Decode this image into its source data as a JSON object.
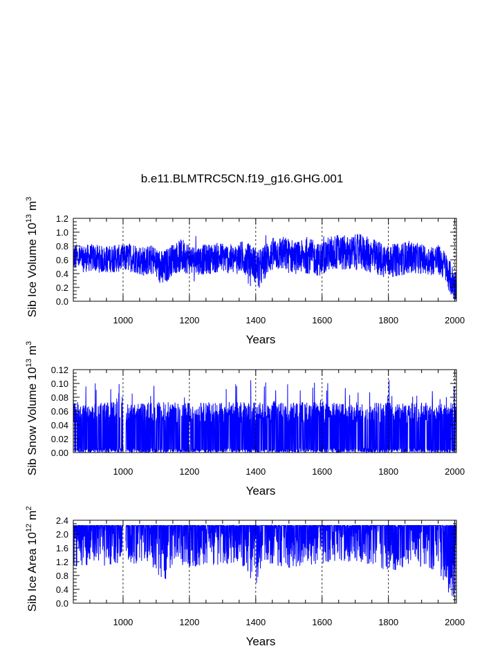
{
  "title": "b.e11.BLMTRC5CN.f19_g16.GHG.001",
  "colors": {
    "series": "#0000ff",
    "axis": "#000000",
    "grid": "#000000"
  },
  "chart_data": [
    {
      "type": "line",
      "panel": "top",
      "ylabel_main": "Sib Ice Volume 10",
      "ylabel_exp": "13",
      "ylabel_unit": "m",
      "ylabel_unit_exp": "3",
      "xlabel": "Years",
      "xlim": [
        850,
        2005
      ],
      "ylim": [
        0.0,
        1.2
      ],
      "xticks": [
        1000,
        1200,
        1400,
        1600,
        1800,
        2000
      ],
      "xtick_labels": [
        "1000",
        "1200",
        "1400",
        "1600",
        "1800",
        "2000"
      ],
      "yticks": [
        0.0,
        0.2,
        0.4,
        0.6,
        0.8,
        1.0,
        1.2
      ],
      "ytick_labels": [
        "0.0",
        "0.2",
        "0.4",
        "0.6",
        "0.8",
        "1.0",
        "1.2"
      ],
      "grid": "dashed vertical at major x ticks",
      "series": [
        {
          "x": [
            850,
            880,
            910,
            940,
            970,
            1000,
            1030,
            1060,
            1090,
            1120,
            1150,
            1180,
            1210,
            1240,
            1270,
            1300,
            1330,
            1360,
            1390,
            1410,
            1440,
            1470,
            1500,
            1530,
            1560,
            1590,
            1620,
            1650,
            1680,
            1710,
            1740,
            1770,
            1800,
            1830,
            1860,
            1890,
            1920,
            1950,
            1970,
            1990,
            2005
          ],
          "mean": [
            0.64,
            0.62,
            0.63,
            0.6,
            0.62,
            0.62,
            0.64,
            0.58,
            0.6,
            0.45,
            0.62,
            0.66,
            0.6,
            0.6,
            0.62,
            0.64,
            0.6,
            0.64,
            0.58,
            0.45,
            0.65,
            0.7,
            0.66,
            0.63,
            0.66,
            0.6,
            0.68,
            0.72,
            0.68,
            0.72,
            0.67,
            0.62,
            0.58,
            0.6,
            0.64,
            0.62,
            0.6,
            0.6,
            0.52,
            0.3,
            0.2
          ],
          "amp": [
            0.2,
            0.2,
            0.2,
            0.2,
            0.2,
            0.2,
            0.22,
            0.22,
            0.22,
            0.28,
            0.22,
            0.25,
            0.22,
            0.22,
            0.22,
            0.22,
            0.22,
            0.24,
            0.24,
            0.3,
            0.24,
            0.26,
            0.26,
            0.24,
            0.26,
            0.24,
            0.26,
            0.26,
            0.26,
            0.26,
            0.26,
            0.26,
            0.24,
            0.24,
            0.24,
            0.22,
            0.22,
            0.22,
            0.22,
            0.25,
            0.25
          ],
          "min": 0.03,
          "max": 1.09
        }
      ]
    },
    {
      "type": "line",
      "panel": "middle",
      "ylabel_main": "Sib Snow Volume 10",
      "ylabel_exp": "13",
      "ylabel_unit": "m",
      "ylabel_unit_exp": "3",
      "xlabel": "Years",
      "xlim": [
        850,
        2005
      ],
      "ylim": [
        0.0,
        0.12
      ],
      "xticks": [
        1000,
        1200,
        1400,
        1600,
        1800,
        2000
      ],
      "xtick_labels": [
        "1000",
        "1200",
        "1400",
        "1600",
        "1800",
        "2000"
      ],
      "yticks": [
        0.0,
        0.02,
        0.04,
        0.06,
        0.08,
        0.1,
        0.12
      ],
      "ytick_labels": [
        "0.00",
        "0.02",
        "0.04",
        "0.06",
        "0.08",
        "0.10",
        "0.12"
      ],
      "grid": "dashed vertical at major x ticks",
      "gap": [
        1000,
        1008
      ],
      "series": [
        {
          "top_typical": 0.068,
          "top_range": 0.03,
          "max": 0.105,
          "min": 0.0
        }
      ]
    },
    {
      "type": "line",
      "panel": "bottom",
      "ylabel_main": "Sib Ice Area 10",
      "ylabel_exp": "12",
      "ylabel_unit": "m",
      "ylabel_unit_exp": "2",
      "xlabel": "Years",
      "xlim": [
        850,
        2005
      ],
      "ylim": [
        0.0,
        2.4
      ],
      "xticks": [
        1000,
        1200,
        1400,
        1600,
        1800,
        2000
      ],
      "xtick_labels": [
        "1000",
        "1200",
        "1400",
        "1600",
        "1800",
        "2000"
      ],
      "yticks": [
        0.0,
        0.4,
        0.8,
        1.2,
        1.6,
        2.0,
        2.4
      ],
      "ytick_labels": [
        "0.0",
        "0.4",
        "0.8",
        "1.2",
        "1.6",
        "2.0",
        "2.4"
      ],
      "grid": "dashed vertical at major x ticks",
      "gap": [
        1000,
        1008
      ],
      "series": [
        {
          "ceiling": 2.25,
          "x": [
            850,
            900,
            950,
            1000,
            1050,
            1100,
            1120,
            1150,
            1200,
            1250,
            1300,
            1350,
            1400,
            1420,
            1450,
            1500,
            1550,
            1600,
            1650,
            1700,
            1750,
            1800,
            1850,
            1900,
            1950,
            1980,
            2005
          ],
          "low": [
            1.0,
            1.1,
            1.0,
            1.2,
            1.1,
            1.0,
            0.4,
            1.1,
            1.0,
            1.1,
            1.1,
            1.2,
            0.5,
            1.2,
            1.1,
            1.0,
            1.1,
            1.1,
            1.2,
            1.2,
            1.1,
            0.9,
            1.0,
            1.0,
            0.9,
            0.3,
            0.05
          ]
        }
      ]
    }
  ]
}
